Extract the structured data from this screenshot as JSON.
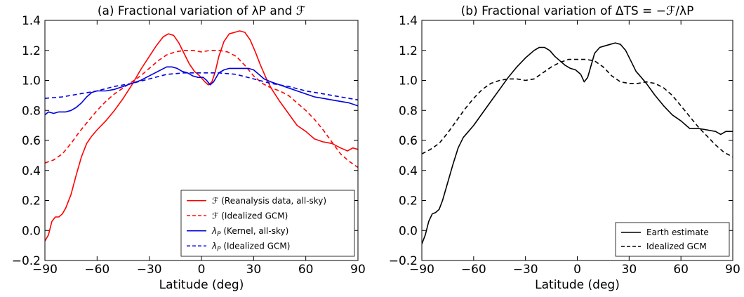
{
  "chart_data": [
    {
      "type": "line",
      "title": "(a) Fractional variation of λP and ℱ",
      "xlabel": "Latitude (deg)",
      "ylabel": "",
      "xlim": [
        -90,
        90
      ],
      "ylim": [
        -0.2,
        1.4
      ],
      "xticks": [
        "−90",
        "−60",
        "−30",
        "0",
        "30",
        "60",
        "90"
      ],
      "yticks": [
        "−0.2",
        "0.0",
        "0.2",
        "0.4",
        "0.6",
        "0.8",
        "1.0",
        "1.2",
        "1.4"
      ],
      "grid": false,
      "legend_position": "lower-right",
      "series": [
        {
          "name": "ℱ (Reanalysis data, all-sky)",
          "color": "#ff0000",
          "dash": "solid",
          "points": [
            [
              -90,
              -0.07
            ],
            [
              -88,
              -0.03
            ],
            [
              -86,
              0.06
            ],
            [
              -84,
              0.09
            ],
            [
              -82,
              0.09
            ],
            [
              -80,
              0.11
            ],
            [
              -78,
              0.15
            ],
            [
              -75,
              0.24
            ],
            [
              -72,
              0.37
            ],
            [
              -69,
              0.49
            ],
            [
              -66,
              0.58
            ],
            [
              -63,
              0.63
            ],
            [
              -60,
              0.67
            ],
            [
              -55,
              0.73
            ],
            [
              -50,
              0.8
            ],
            [
              -45,
              0.88
            ],
            [
              -40,
              0.97
            ],
            [
              -35,
              1.07
            ],
            [
              -30,
              1.16
            ],
            [
              -26,
              1.23
            ],
            [
              -22,
              1.29
            ],
            [
              -19,
              1.31
            ],
            [
              -16,
              1.3
            ],
            [
              -13,
              1.25
            ],
            [
              -10,
              1.18
            ],
            [
              -7,
              1.11
            ],
            [
              -4,
              1.06
            ],
            [
              -1,
              1.03
            ],
            [
              2,
              0.99
            ],
            [
              4,
              0.97
            ],
            [
              6,
              0.99
            ],
            [
              8,
              1.06
            ],
            [
              10,
              1.16
            ],
            [
              13,
              1.26
            ],
            [
              16,
              1.31
            ],
            [
              19,
              1.32
            ],
            [
              22,
              1.33
            ],
            [
              25,
              1.32
            ],
            [
              28,
              1.27
            ],
            [
              31,
              1.19
            ],
            [
              34,
              1.1
            ],
            [
              37,
              1.02
            ],
            [
              40,
              0.95
            ],
            [
              45,
              0.86
            ],
            [
              50,
              0.78
            ],
            [
              55,
              0.7
            ],
            [
              60,
              0.66
            ],
            [
              65,
              0.61
            ],
            [
              70,
              0.59
            ],
            [
              75,
              0.58
            ],
            [
              80,
              0.55
            ],
            [
              84,
              0.53
            ],
            [
              87,
              0.55
            ],
            [
              90,
              0.54
            ]
          ]
        },
        {
          "name": "ℱ (Idealized GCM)",
          "color": "#ff0000",
          "dash": "dashed",
          "points": [
            [
              -90,
              0.45
            ],
            [
              -85,
              0.47
            ],
            [
              -80,
              0.51
            ],
            [
              -75,
              0.58
            ],
            [
              -70,
              0.66
            ],
            [
              -65,
              0.73
            ],
            [
              -60,
              0.8
            ],
            [
              -55,
              0.86
            ],
            [
              -50,
              0.91
            ],
            [
              -45,
              0.95
            ],
            [
              -40,
              0.99
            ],
            [
              -35,
              1.03
            ],
            [
              -30,
              1.08
            ],
            [
              -25,
              1.13
            ],
            [
              -20,
              1.17
            ],
            [
              -15,
              1.19
            ],
            [
              -10,
              1.2
            ],
            [
              -5,
              1.2
            ],
            [
              0,
              1.19
            ],
            [
              5,
              1.2
            ],
            [
              10,
              1.2
            ],
            [
              15,
              1.19
            ],
            [
              20,
              1.16
            ],
            [
              25,
              1.1
            ],
            [
              30,
              1.03
            ],
            [
              35,
              0.98
            ],
            [
              40,
              0.95
            ],
            [
              45,
              0.93
            ],
            [
              50,
              0.9
            ],
            [
              55,
              0.85
            ],
            [
              60,
              0.8
            ],
            [
              65,
              0.74
            ],
            [
              70,
              0.67
            ],
            [
              75,
              0.59
            ],
            [
              80,
              0.51
            ],
            [
              85,
              0.46
            ],
            [
              90,
              0.42
            ]
          ]
        },
        {
          "name": "λP (Kernel, all-sky)",
          "color": "#0000dd",
          "dash": "solid",
          "points": [
            [
              -90,
              0.77
            ],
            [
              -88,
              0.79
            ],
            [
              -85,
              0.78
            ],
            [
              -82,
              0.79
            ],
            [
              -78,
              0.79
            ],
            [
              -75,
              0.8
            ],
            [
              -72,
              0.82
            ],
            [
              -69,
              0.85
            ],
            [
              -66,
              0.89
            ],
            [
              -63,
              0.92
            ],
            [
              -60,
              0.93
            ],
            [
              -55,
              0.93
            ],
            [
              -50,
              0.94
            ],
            [
              -45,
              0.96
            ],
            [
              -40,
              0.98
            ],
            [
              -35,
              1.0
            ],
            [
              -30,
              1.03
            ],
            [
              -25,
              1.06
            ],
            [
              -20,
              1.09
            ],
            [
              -17,
              1.09
            ],
            [
              -14,
              1.08
            ],
            [
              -11,
              1.06
            ],
            [
              -8,
              1.05
            ],
            [
              -5,
              1.03
            ],
            [
              -2,
              1.02
            ],
            [
              1,
              1.02
            ],
            [
              3,
              1.0
            ],
            [
              5,
              0.97
            ],
            [
              7,
              0.99
            ],
            [
              10,
              1.05
            ],
            [
              13,
              1.07
            ],
            [
              16,
              1.08
            ],
            [
              20,
              1.08
            ],
            [
              23,
              1.08
            ],
            [
              27,
              1.08
            ],
            [
              30,
              1.07
            ],
            [
              33,
              1.04
            ],
            [
              36,
              1.01
            ],
            [
              40,
              0.99
            ],
            [
              45,
              0.97
            ],
            [
              50,
              0.95
            ],
            [
              55,
              0.93
            ],
            [
              60,
              0.91
            ],
            [
              65,
              0.89
            ],
            [
              70,
              0.88
            ],
            [
              75,
              0.87
            ],
            [
              80,
              0.86
            ],
            [
              85,
              0.85
            ],
            [
              90,
              0.83
            ]
          ]
        },
        {
          "name": "λP (Idealized GCM)",
          "color": "#0000dd",
          "dash": "dashed",
          "points": [
            [
              -90,
              0.88
            ],
            [
              -80,
              0.89
            ],
            [
              -70,
              0.91
            ],
            [
              -60,
              0.93
            ],
            [
              -50,
              0.96
            ],
            [
              -40,
              0.98
            ],
            [
              -30,
              1.01
            ],
            [
              -20,
              1.04
            ],
            [
              -10,
              1.05
            ],
            [
              0,
              1.05
            ],
            [
              10,
              1.05
            ],
            [
              20,
              1.04
            ],
            [
              30,
              1.01
            ],
            [
              40,
              0.98
            ],
            [
              50,
              0.96
            ],
            [
              60,
              0.93
            ],
            [
              70,
              0.91
            ],
            [
              80,
              0.89
            ],
            [
              90,
              0.87
            ]
          ]
        }
      ]
    },
    {
      "type": "line",
      "title": "(b) Fractional variation of ΔTS = −ℱ/λP",
      "xlabel": "Latitude (deg)",
      "ylabel": "",
      "xlim": [
        -90,
        90
      ],
      "ylim": [
        -0.2,
        1.4
      ],
      "xticks": [
        "−90",
        "−60",
        "−30",
        "0",
        "30",
        "60",
        "90"
      ],
      "yticks": [
        "−0.2",
        "0.0",
        "0.2",
        "0.4",
        "0.6",
        "0.8",
        "1.0",
        "1.2",
        "1.4"
      ],
      "grid": false,
      "legend_position": "lower-right",
      "series": [
        {
          "name": "Earth estimate",
          "color": "#000000",
          "dash": "solid",
          "points": [
            [
              -90,
              -0.09
            ],
            [
              -88,
              -0.03
            ],
            [
              -86,
              0.06
            ],
            [
              -84,
              0.11
            ],
            [
              -82,
              0.12
            ],
            [
              -80,
              0.14
            ],
            [
              -78,
              0.2
            ],
            [
              -75,
              0.32
            ],
            [
              -72,
              0.44
            ],
            [
              -69,
              0.55
            ],
            [
              -66,
              0.62
            ],
            [
              -63,
              0.66
            ],
            [
              -60,
              0.7
            ],
            [
              -55,
              0.78
            ],
            [
              -50,
              0.86
            ],
            [
              -45,
              0.94
            ],
            [
              -40,
              1.02
            ],
            [
              -35,
              1.09
            ],
            [
              -30,
              1.15
            ],
            [
              -25,
              1.2
            ],
            [
              -22,
              1.22
            ],
            [
              -19,
              1.22
            ],
            [
              -16,
              1.2
            ],
            [
              -13,
              1.16
            ],
            [
              -10,
              1.13
            ],
            [
              -7,
              1.1
            ],
            [
              -4,
              1.08
            ],
            [
              -1,
              1.07
            ],
            [
              2,
              1.04
            ],
            [
              4,
              0.99
            ],
            [
              6,
              1.02
            ],
            [
              8,
              1.1
            ],
            [
              10,
              1.18
            ],
            [
              13,
              1.22
            ],
            [
              16,
              1.23
            ],
            [
              19,
              1.24
            ],
            [
              22,
              1.25
            ],
            [
              25,
              1.24
            ],
            [
              28,
              1.2
            ],
            [
              31,
              1.13
            ],
            [
              34,
              1.06
            ],
            [
              37,
              1.02
            ],
            [
              40,
              0.98
            ],
            [
              45,
              0.9
            ],
            [
              50,
              0.83
            ],
            [
              55,
              0.77
            ],
            [
              60,
              0.73
            ],
            [
              65,
              0.68
            ],
            [
              70,
              0.68
            ],
            [
              75,
              0.67
            ],
            [
              80,
              0.66
            ],
            [
              83,
              0.64
            ],
            [
              86,
              0.66
            ],
            [
              90,
              0.66
            ]
          ]
        },
        {
          "name": "Idealized GCM",
          "color": "#000000",
          "dash": "dashed",
          "points": [
            [
              -90,
              0.51
            ],
            [
              -85,
              0.54
            ],
            [
              -80,
              0.58
            ],
            [
              -75,
              0.65
            ],
            [
              -70,
              0.73
            ],
            [
              -65,
              0.81
            ],
            [
              -60,
              0.88
            ],
            [
              -55,
              0.94
            ],
            [
              -50,
              0.98
            ],
            [
              -45,
              1.0
            ],
            [
              -40,
              1.01
            ],
            [
              -35,
              1.01
            ],
            [
              -30,
              1.0
            ],
            [
              -25,
              1.01
            ],
            [
              -20,
              1.05
            ],
            [
              -15,
              1.09
            ],
            [
              -10,
              1.12
            ],
            [
              -5,
              1.14
            ],
            [
              0,
              1.14
            ],
            [
              5,
              1.14
            ],
            [
              10,
              1.13
            ],
            [
              15,
              1.09
            ],
            [
              20,
              1.03
            ],
            [
              25,
              0.99
            ],
            [
              30,
              0.98
            ],
            [
              35,
              0.98
            ],
            [
              40,
              0.99
            ],
            [
              45,
              0.98
            ],
            [
              50,
              0.95
            ],
            [
              55,
              0.9
            ],
            [
              60,
              0.83
            ],
            [
              65,
              0.76
            ],
            [
              70,
              0.69
            ],
            [
              75,
              0.63
            ],
            [
              80,
              0.57
            ],
            [
              85,
              0.52
            ],
            [
              90,
              0.49
            ]
          ]
        }
      ]
    }
  ]
}
